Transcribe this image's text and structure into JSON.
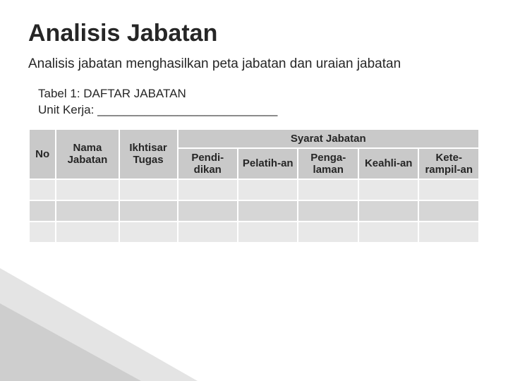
{
  "title": "Analisis Jabatan",
  "subtitle": "Analisis jabatan menghasilkan peta jabatan dan uraian jabatan",
  "caption": "Tabel 1: DAFTAR JABATAN",
  "unit_label": "Unit Kerja: ___________________________",
  "table": {
    "type": "table",
    "header_bg": "#c9c9c9",
    "row_bg_odd": "#e8e8e8",
    "row_bg_even": "#d6d6d6",
    "border_color": "#ffffff",
    "text_color": "#262626",
    "fontsize": 15,
    "columns": [
      {
        "key": "no",
        "label": "No",
        "width_pct": 6
      },
      {
        "key": "nama",
        "label": "Nama Jabatan",
        "width_pct": 14
      },
      {
        "key": "ikhtisar",
        "label": "Ikhtisar Tugas",
        "width_pct": 13
      },
      {
        "key": "syarat",
        "label": "Syarat Jabatan",
        "width_pct": 67,
        "sub": [
          {
            "key": "pendidikan",
            "label": "Pendi-dikan"
          },
          {
            "key": "pelatihan",
            "label": "Pelatih-an"
          },
          {
            "key": "pengalaman",
            "label": "Penga-laman"
          },
          {
            "key": "keahlian",
            "label": "Keahli-an"
          },
          {
            "key": "keterampilan",
            "label": "Kete-rampil-an"
          }
        ]
      }
    ],
    "rows": [
      [
        "",
        "",
        "",
        "",
        "",
        "",
        "",
        ""
      ],
      [
        "",
        "",
        "",
        "",
        "",
        "",
        "",
        ""
      ],
      [
        "",
        "",
        "",
        "",
        "",
        "",
        "",
        ""
      ]
    ]
  },
  "typography": {
    "title_fontsize": 34,
    "subtitle_fontsize": 19,
    "meta_fontsize": 17
  },
  "background_color": "#ffffff",
  "deco_color": "#d8d8d8"
}
